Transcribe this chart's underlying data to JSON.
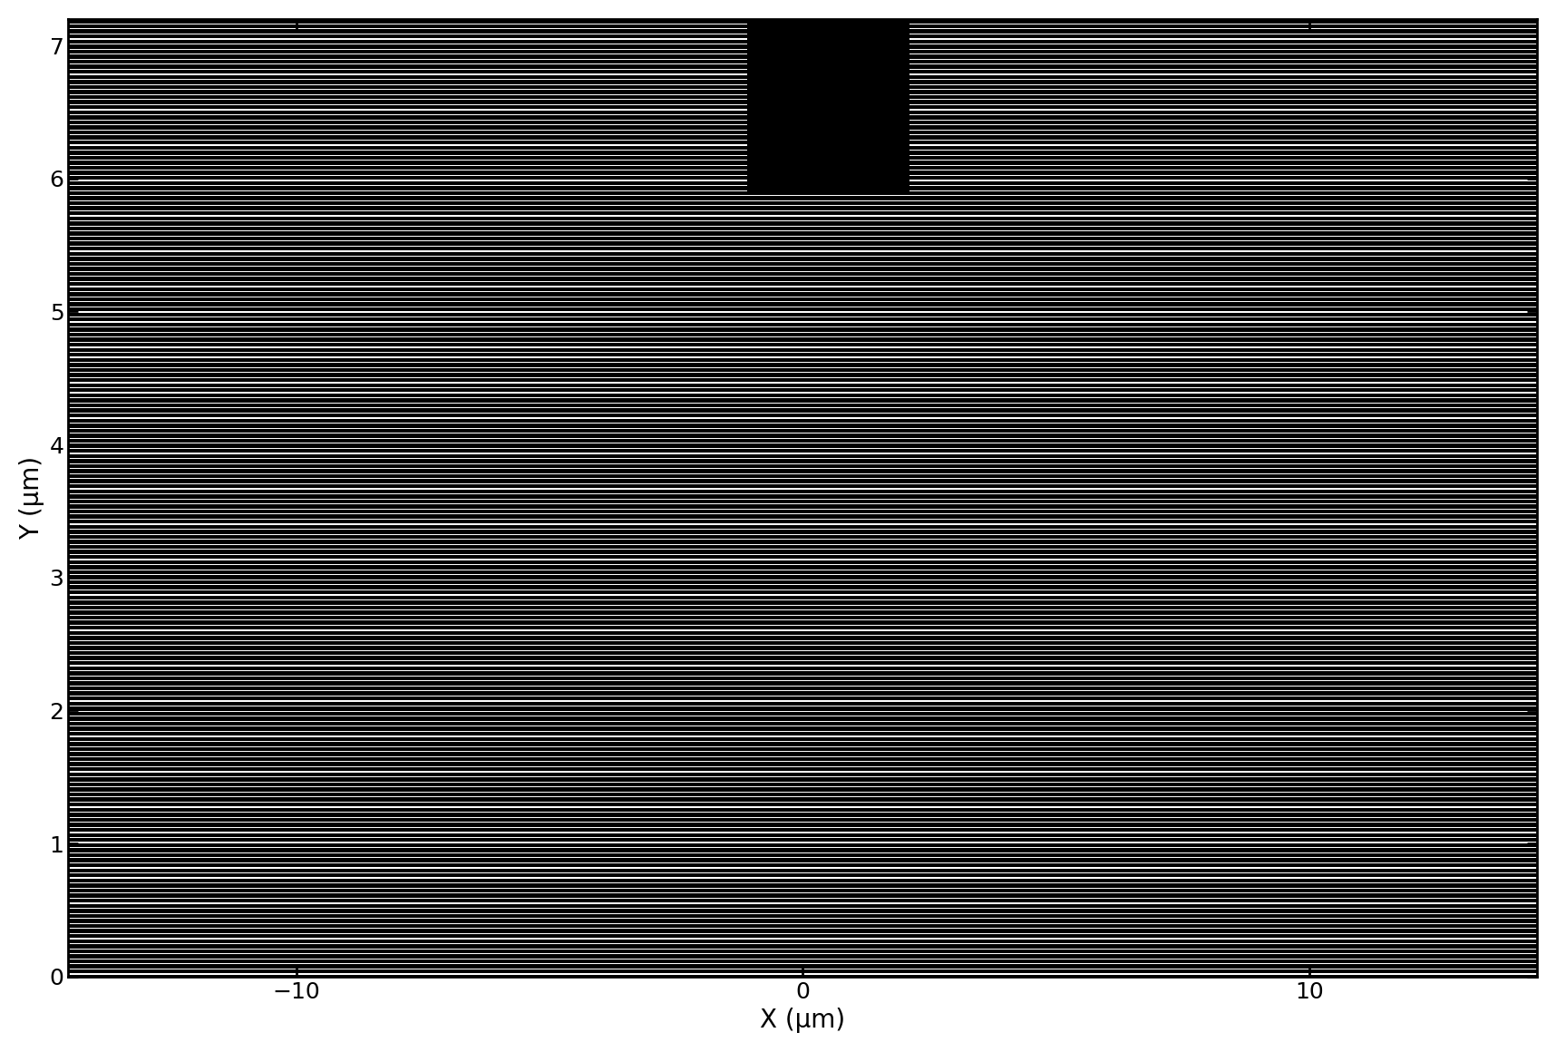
{
  "xlim": [
    -14.5,
    14.5
  ],
  "ylim": [
    0,
    7.2
  ],
  "xlabel": "X (μm)",
  "ylabel": "Y (μm)",
  "xlabel_fontsize": 20,
  "ylabel_fontsize": 20,
  "tick_fontsize": 18,
  "plot_bg_color": "#000000",
  "figure_bg_color": "#ffffff",
  "stripe_color": "#ffffff",
  "stripe_thickness": 0.008,
  "stripe_period": 0.038,
  "void_x1": -1.1,
  "void_x2": 2.1,
  "void_y1": 5.88,
  "void_y2": 7.25,
  "void_color": "#000000",
  "xticks": [
    -10,
    0,
    10
  ],
  "yticks": [
    0,
    1,
    2,
    3,
    4,
    5,
    6,
    7
  ],
  "figsize": [
    17.16,
    11.6
  ],
  "dpi": 100
}
